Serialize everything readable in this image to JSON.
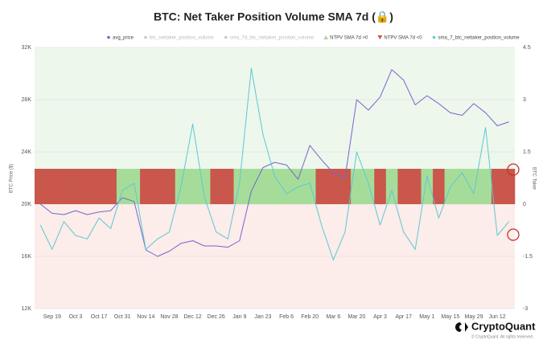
{
  "chart_data": {
    "type": "line",
    "title": "BTC: Net Taker Position Volume SMA 7d (🔒)",
    "y_label": "BTC Price ($)",
    "y2_label": "BTC Taker",
    "brand": "CryptoQuant",
    "copyright": "© CryptoQuant. All rights reserved.",
    "categories": [
      null,
      "Sep 19",
      null,
      "Oct 3",
      null,
      "Oct 17",
      null,
      "Oct 31",
      null,
      "Nov 14",
      null,
      "Nov 28",
      null,
      "Dec 12",
      null,
      "Dec 26",
      null,
      "Jan 9",
      null,
      "Jan 23",
      null,
      "Feb 6",
      null,
      "Feb 20",
      null,
      "Mar 6",
      null,
      "Mar 20",
      null,
      "Apr 3",
      null,
      "Apr 17",
      null,
      "May 1",
      null,
      "May 15",
      null,
      "May 29",
      null,
      "Jun 12",
      null
    ],
    "ylim": [
      12000,
      32000
    ],
    "yticks": [
      {
        "value": 12000,
        "label": "12K"
      },
      {
        "value": 16000,
        "label": "16K"
      },
      {
        "value": 20000,
        "label": "20K"
      },
      {
        "value": 24000,
        "label": "24K"
      },
      {
        "value": 28000,
        "label": "28K"
      },
      {
        "value": 32000,
        "label": "32K"
      }
    ],
    "y2lim": [
      -3,
      4.5
    ],
    "y2ticks": [
      -3,
      -1.5,
      0,
      1.5,
      3,
      4.5
    ],
    "grid": true,
    "series": [
      {
        "name": "avg_price",
        "color": "#7466cf",
        "axis": "y",
        "values": [
          20000,
          19300,
          19200,
          19500,
          19200,
          19400,
          19500,
          20500,
          20200,
          16500,
          16000,
          16400,
          17000,
          17200,
          16800,
          16800,
          16700,
          17200,
          21000,
          22800,
          23200,
          23000,
          21900,
          24500,
          23400,
          22400,
          22000,
          28000,
          27200,
          28200,
          30300,
          29500,
          27600,
          28300,
          27700,
          27000,
          26800,
          27700,
          27000,
          26000,
          26300
        ]
      },
      {
        "name": "btc_nettaker_position_volume",
        "color": "#c8c8c8",
        "visible": false
      },
      {
        "name": "sma_7d_btc_nettaker_position_volume",
        "color": "#c8c8c8",
        "visible": false
      },
      {
        "name": "NTPV SMA 7d >0",
        "color": "#a6dc9a",
        "band": "positive"
      },
      {
        "name": "NTPV SMA 7d <0",
        "color": "#c9574b",
        "band": "negative"
      },
      {
        "name": "sma_7_btc_nettaker_position_volume",
        "color": "#5cc8d3",
        "axis": "y2",
        "values": [
          -0.6,
          -1.3,
          -0.5,
          -0.9,
          -1.0,
          -0.4,
          -0.7,
          0.4,
          0.6,
          -1.3,
          -1.0,
          -0.8,
          0.5,
          2.3,
          0.2,
          -0.8,
          -1.0,
          0.6,
          3.9,
          2.0,
          0.8,
          0.3,
          0.5,
          0.6,
          -0.6,
          -1.6,
          -0.8,
          1.5,
          0.6,
          -0.6,
          0.4,
          -0.8,
          -1.3,
          0.8,
          -0.4,
          0.5,
          0.9,
          0.3,
          2.2,
          -0.9,
          -0.5
        ]
      }
    ]
  }
}
